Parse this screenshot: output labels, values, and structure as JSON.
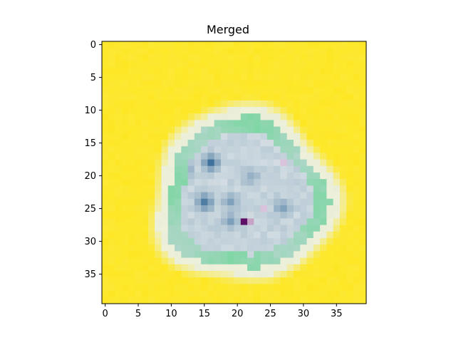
{
  "chart_data": {
    "type": "heatmap",
    "title": "Merged",
    "xlabel": "",
    "ylabel": "",
    "rows": 40,
    "cols": 40,
    "xlim": [
      -0.5,
      39.5
    ],
    "ylim": [
      39.5,
      -0.5
    ],
    "x_ticks": [
      "0",
      "5",
      "10",
      "15",
      "20",
      "25",
      "30",
      "35"
    ],
    "y_ticks": [
      "0",
      "5",
      "10",
      "15",
      "20",
      "25",
      "30",
      "35"
    ],
    "grid": false,
    "colors": {
      "background": "#fde725",
      "halo": "#eef0da",
      "cell_body": "#c9d6dd",
      "cell_edge": "#7fd6a4",
      "dark_spot": "#3a6f9a",
      "outlier": "#5e0f66",
      "outlier_light": "#c7a3c8"
    },
    "object": {
      "center": [
        21,
        23
      ],
      "radius_halo": 14,
      "radius_body": 11.5
    },
    "dark_spots": [
      {
        "x": 16,
        "y": 18,
        "v": 0.9
      },
      {
        "x": 15,
        "y": 24,
        "v": 0.85
      },
      {
        "x": 12,
        "y": 19,
        "v": 0.5
      },
      {
        "x": 19,
        "y": 24,
        "v": 0.45
      },
      {
        "x": 27,
        "y": 25,
        "v": 0.5
      },
      {
        "x": 19,
        "y": 27,
        "v": 0.45
      },
      {
        "x": 22,
        "y": 20,
        "v": 0.35
      }
    ],
    "outliers": [
      {
        "x": 21,
        "y": 27,
        "color": "#5e0f66"
      },
      {
        "x": 22,
        "y": 27,
        "color": "#c7a3c8"
      },
      {
        "x": 24,
        "y": 25,
        "color": "#d9c2dc"
      },
      {
        "x": 27,
        "y": 18,
        "color": "#d9c2dc"
      }
    ]
  }
}
